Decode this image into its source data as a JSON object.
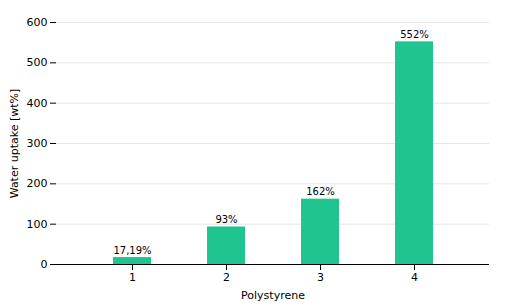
{
  "chart_data": {
    "type": "bar",
    "categories": [
      "1",
      "2",
      "3",
      "4"
    ],
    "values": [
      17.19,
      93,
      162,
      552
    ],
    "value_labels": [
      "17,19%",
      "93%",
      "162%",
      "552%"
    ],
    "color": "#20C490",
    "xlabel": "Polystyrene",
    "ylabel": "Water uptake [wt%]",
    "ylim": [
      0,
      600
    ],
    "yticks": [
      0,
      100,
      200,
      300,
      400,
      500,
      600
    ],
    "grid": true,
    "data_labels": true
  }
}
